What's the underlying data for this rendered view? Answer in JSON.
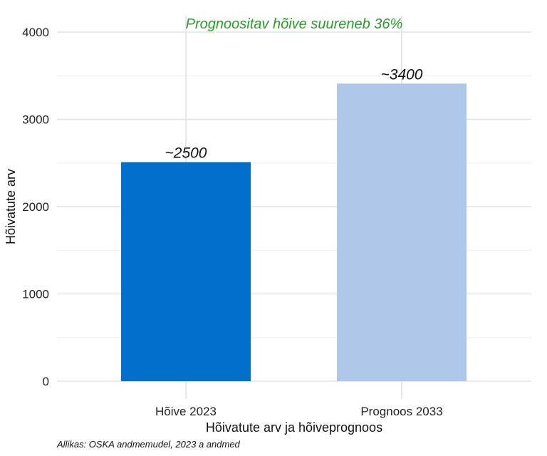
{
  "chart_data": {
    "type": "bar",
    "categories": [
      "Hõive 2023",
      "Prognoos 2033"
    ],
    "values": [
      2510,
      3410
    ],
    "data_labels": [
      "~2500",
      "~3400"
    ],
    "bar_colors": [
      "#0070CC",
      "#AFC7E8"
    ],
    "annotation": "Prognoositav hõive suureneb 36%",
    "annotation_color": "#2E9A2E",
    "xlabel": "Hõivatute arv ja hõiveprognoos",
    "ylabel": "Hõivatute arv",
    "ylim": [
      0,
      4000
    ],
    "yticks": [
      0,
      1000,
      2000,
      3000,
      4000
    ],
    "grid": true,
    "caption": "Allikas: OSKA andmemudel, 2023 a andmed"
  }
}
